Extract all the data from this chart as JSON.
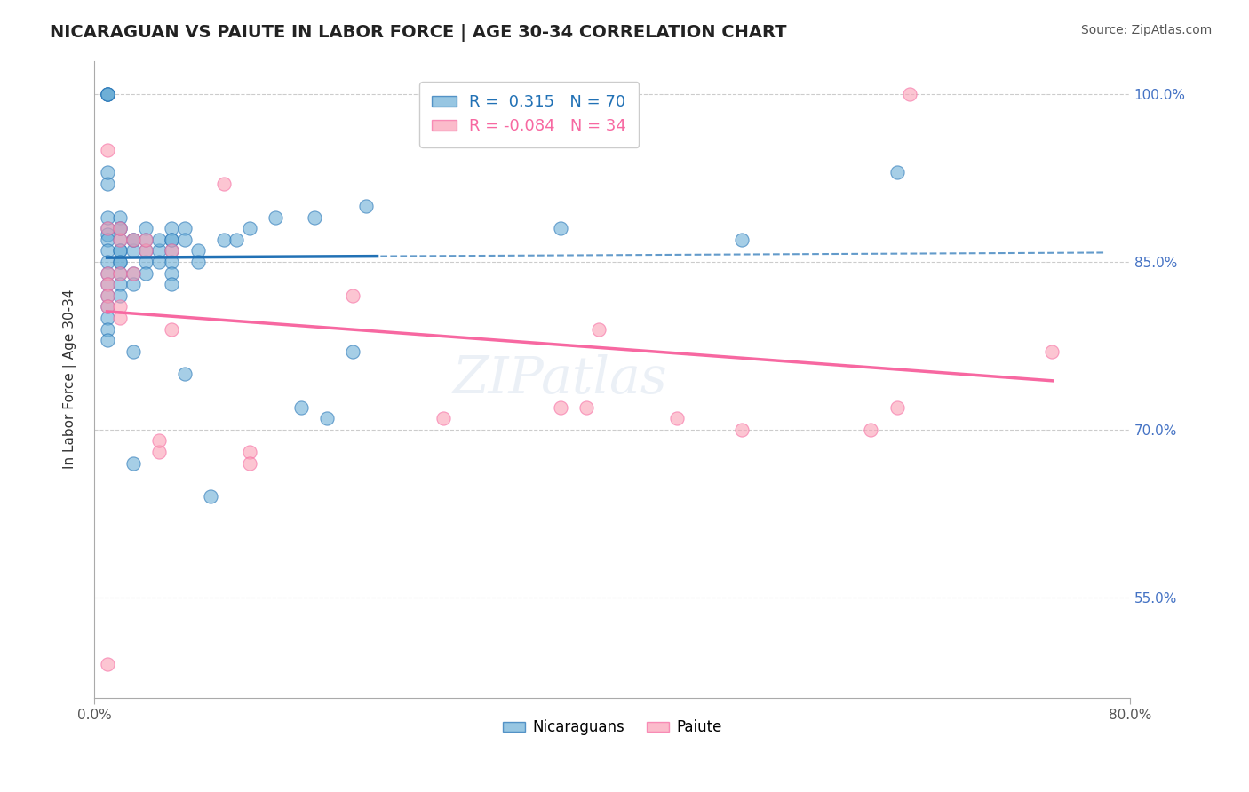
{
  "title": "NICARAGUAN VS PAIUTE IN LABOR FORCE | AGE 30-34 CORRELATION CHART",
  "source": "Source: ZipAtlas.com",
  "xlabel": "",
  "ylabel": "In Labor Force | Age 30-34",
  "xlim": [
    0.0,
    0.8
  ],
  "ylim": [
    0.46,
    1.03
  ],
  "xticks": [
    0.0,
    0.1,
    0.2,
    0.3,
    0.4,
    0.5,
    0.6,
    0.7,
    0.8
  ],
  "xtick_labels": [
    "0.0%",
    "",
    "",
    "",
    "",
    "",
    "",
    "",
    "80.0%"
  ],
  "ytick_positions": [
    0.55,
    0.7,
    0.85,
    1.0
  ],
  "ytick_labels": [
    "55.0%",
    "70.0%",
    "85.0%",
    "100.0%"
  ],
  "blue_R": 0.315,
  "blue_N": 70,
  "pink_R": -0.084,
  "pink_N": 34,
  "blue_color": "#6baed6",
  "pink_color": "#fa9fb5",
  "blue_line_color": "#2171b5",
  "pink_line_color": "#f768a1",
  "watermark": "ZIPatlas",
  "blue_scatter_x": [
    0.01,
    0.01,
    0.01,
    0.01,
    0.01,
    0.01,
    0.01,
    0.01,
    0.01,
    0.01,
    0.01,
    0.01,
    0.01,
    0.01,
    0.01,
    0.01,
    0.01,
    0.01,
    0.01,
    0.02,
    0.02,
    0.02,
    0.02,
    0.02,
    0.02,
    0.02,
    0.02,
    0.02,
    0.02,
    0.02,
    0.03,
    0.03,
    0.03,
    0.03,
    0.03,
    0.03,
    0.03,
    0.04,
    0.04,
    0.04,
    0.04,
    0.04,
    0.05,
    0.05,
    0.05,
    0.06,
    0.06,
    0.06,
    0.06,
    0.06,
    0.06,
    0.06,
    0.07,
    0.07,
    0.07,
    0.08,
    0.08,
    0.09,
    0.1,
    0.11,
    0.12,
    0.14,
    0.16,
    0.17,
    0.18,
    0.2,
    0.21,
    0.36,
    0.5,
    0.62
  ],
  "blue_scatter_y": [
    0.88,
    0.89,
    0.875,
    0.87,
    0.86,
    0.85,
    0.84,
    0.83,
    0.82,
    0.81,
    0.8,
    0.79,
    0.78,
    0.92,
    0.93,
    1.0,
    1.0,
    1.0,
    1.0,
    0.87,
    0.86,
    0.85,
    0.88,
    0.84,
    0.83,
    0.82,
    0.86,
    0.85,
    0.89,
    0.88,
    0.87,
    0.86,
    0.84,
    0.83,
    0.87,
    0.77,
    0.67,
    0.88,
    0.85,
    0.86,
    0.84,
    0.87,
    0.86,
    0.85,
    0.87,
    0.88,
    0.87,
    0.86,
    0.85,
    0.84,
    0.83,
    0.87,
    0.88,
    0.87,
    0.75,
    0.86,
    0.85,
    0.64,
    0.87,
    0.87,
    0.88,
    0.89,
    0.72,
    0.89,
    0.71,
    0.77,
    0.9,
    0.88,
    0.87,
    0.93
  ],
  "pink_scatter_x": [
    0.01,
    0.01,
    0.01,
    0.01,
    0.01,
    0.01,
    0.01,
    0.02,
    0.02,
    0.02,
    0.02,
    0.02,
    0.03,
    0.03,
    0.04,
    0.04,
    0.05,
    0.05,
    0.06,
    0.06,
    0.1,
    0.12,
    0.12,
    0.2,
    0.27,
    0.36,
    0.38,
    0.39,
    0.45,
    0.5,
    0.6,
    0.62,
    0.63,
    0.74
  ],
  "pink_scatter_y": [
    0.88,
    0.95,
    0.84,
    0.83,
    0.82,
    0.81,
    0.49,
    0.87,
    0.88,
    0.84,
    0.81,
    0.8,
    0.87,
    0.84,
    0.86,
    0.87,
    0.68,
    0.69,
    0.86,
    0.79,
    0.92,
    0.68,
    0.67,
    0.82,
    0.71,
    0.72,
    0.72,
    0.79,
    0.71,
    0.7,
    0.7,
    0.72,
    1.0,
    0.77
  ]
}
